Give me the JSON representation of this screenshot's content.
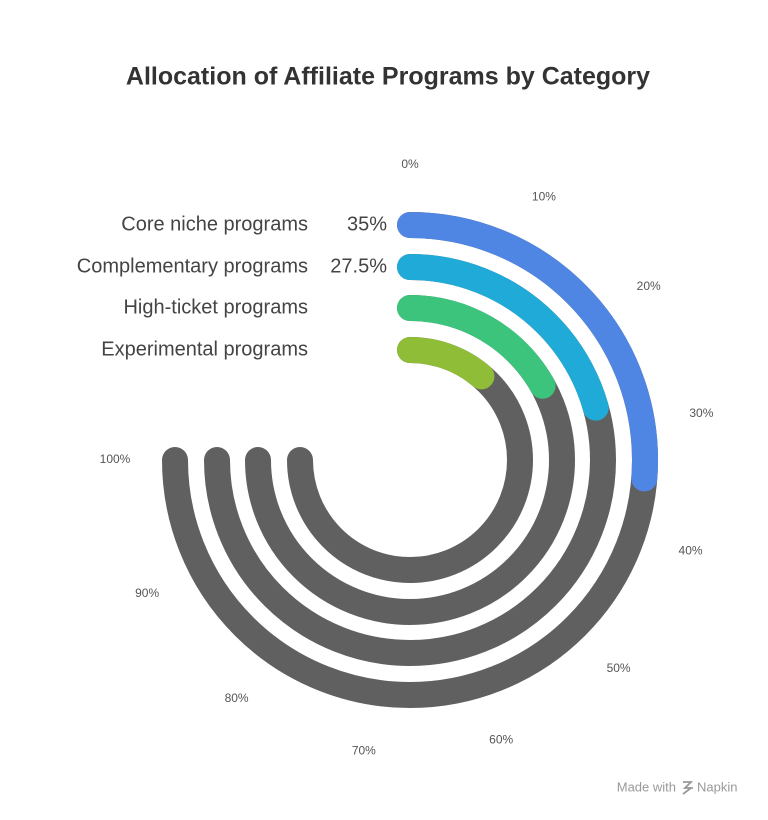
{
  "chart_data": {
    "type": "radial_bar",
    "title": "Allocation of Affiliate Programs by Category",
    "categories": [
      "Core niche programs",
      "Complementary programs",
      "High-ticket programs",
      "Experimental programs"
    ],
    "values": [
      35,
      27.5,
      22.5,
      15
    ],
    "value_labels": [
      "35%",
      "27.5%",
      null,
      null
    ],
    "colors": [
      "#4f86e3",
      "#1faad8",
      "#3cc47c",
      "#8fbd37"
    ],
    "track_color": "#606060",
    "lim": [
      0,
      100
    ],
    "ticks": [
      {
        "value": 0,
        "label": "0%"
      },
      {
        "value": 10,
        "label": "10%"
      },
      {
        "value": 20,
        "label": "20%"
      },
      {
        "value": 30,
        "label": "30%"
      },
      {
        "value": 40,
        "label": "40%"
      },
      {
        "value": 50,
        "label": "50%"
      },
      {
        "value": 60,
        "label": "60%"
      },
      {
        "value": 70,
        "label": "70%"
      },
      {
        "value": 80,
        "label": "80%"
      },
      {
        "value": 90,
        "label": "90%"
      },
      {
        "value": 100,
        "label": "100%"
      }
    ],
    "footer": {
      "made_with": "Made with",
      "brand": "Napkin"
    }
  }
}
